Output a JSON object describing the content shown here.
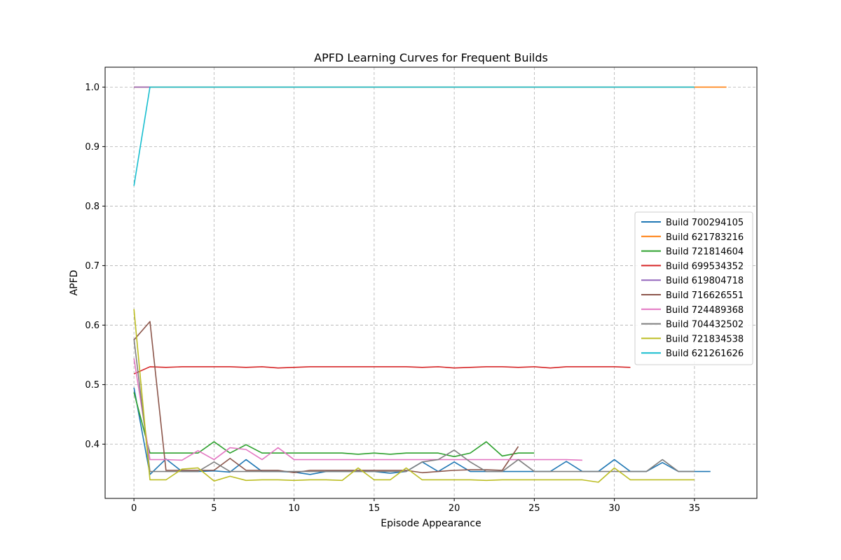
{
  "chart_data": {
    "type": "line",
    "title": "APFD Learning Curves for Frequent Builds",
    "xlabel": "Episode Appearance",
    "ylabel": "APFD",
    "xlim": [
      -1.8,
      38.9
    ],
    "ylim": [
      0.3088,
      1.0334
    ],
    "xticks": [
      0,
      5,
      10,
      15,
      20,
      25,
      30,
      35
    ],
    "yticks": [
      0.4,
      0.5,
      0.6,
      0.7,
      0.8,
      0.9,
      1.0
    ],
    "ytick_labels": [
      "0.4",
      "0.5",
      "0.6",
      "0.7",
      "0.8",
      "0.9",
      "1.0"
    ],
    "grid": true,
    "legend_position": "center-right",
    "series": [
      {
        "name": "Build 700294105",
        "color": "#1f77b4",
        "values": [
          0.495,
          0.349,
          0.375,
          0.354,
          0.354,
          0.355,
          0.353,
          0.374,
          0.354,
          0.354,
          0.353,
          0.349,
          0.354,
          0.354,
          0.354,
          0.354,
          0.351,
          0.354,
          0.37,
          0.354,
          0.37,
          0.354,
          0.354,
          0.354,
          0.354,
          0.354,
          0.354,
          0.371,
          0.354,
          0.354,
          0.374,
          0.354,
          0.354,
          0.369,
          0.354,
          0.354,
          0.354
        ]
      },
      {
        "name": "Build 621783216",
        "color": "#ff7f0e",
        "values": [
          1.0,
          1.0,
          1.0,
          1.0,
          1.0,
          1.0,
          1.0,
          1.0,
          1.0,
          1.0,
          1.0,
          1.0,
          1.0,
          1.0,
          1.0,
          1.0,
          1.0,
          1.0,
          1.0,
          1.0,
          1.0,
          1.0,
          1.0,
          1.0,
          1.0,
          1.0,
          1.0,
          1.0,
          1.0,
          1.0,
          1.0,
          1.0,
          1.0,
          1.0,
          1.0,
          1.0,
          1.0,
          1.0
        ]
      },
      {
        "name": "Build 721814604",
        "color": "#2ca02c",
        "values": [
          0.487,
          0.385,
          0.385,
          0.385,
          0.385,
          0.404,
          0.385,
          0.399,
          0.385,
          0.385,
          0.385,
          0.385,
          0.385,
          0.385,
          0.383,
          0.385,
          0.383,
          0.385,
          0.385,
          0.385,
          0.379,
          0.385,
          0.404,
          0.38,
          0.385,
          0.385
        ]
      },
      {
        "name": "Build 699534352",
        "color": "#d62728",
        "values": [
          0.518,
          0.53,
          0.529,
          0.53,
          0.53,
          0.53,
          0.53,
          0.529,
          0.53,
          0.528,
          0.529,
          0.53,
          0.53,
          0.53,
          0.53,
          0.53,
          0.53,
          0.53,
          0.529,
          0.53,
          0.528,
          0.529,
          0.53,
          0.53,
          0.529,
          0.53,
          0.528,
          0.53,
          0.53,
          0.53,
          0.53,
          0.529
        ]
      },
      {
        "name": "Build 619804718",
        "color": "#9467bd",
        "values": [
          1.0,
          1.0
        ]
      },
      {
        "name": "Build 716626551",
        "color": "#8c564b",
        "values": [
          0.575,
          0.606,
          0.356,
          0.356,
          0.356,
          0.356,
          0.376,
          0.356,
          0.356,
          0.356,
          0.352,
          0.356,
          0.356,
          0.356,
          0.356,
          0.356,
          0.356,
          0.356,
          0.352,
          0.354,
          0.356,
          0.357,
          0.357,
          0.356,
          0.396
        ]
      },
      {
        "name": "Build 724489368",
        "color": "#e377c2",
        "values": [
          0.544,
          0.374,
          0.374,
          0.373,
          0.389,
          0.374,
          0.394,
          0.391,
          0.374,
          0.394,
          0.374,
          0.374,
          0.374,
          0.374,
          0.374,
          0.374,
          0.374,
          0.374,
          0.374,
          0.374,
          0.374,
          0.374,
          0.374,
          0.374,
          0.374,
          0.374,
          0.374,
          0.374,
          0.373
        ]
      },
      {
        "name": "Build 704432502",
        "color": "#7f7f7f",
        "values": [
          0.577,
          0.354,
          0.354,
          0.354,
          0.354,
          0.37,
          0.354,
          0.354,
          0.354,
          0.354,
          0.354,
          0.354,
          0.354,
          0.354,
          0.354,
          0.354,
          0.354,
          0.354,
          0.37,
          0.374,
          0.39,
          0.37,
          0.354,
          0.354,
          0.374,
          0.354,
          0.354,
          0.354,
          0.354,
          0.354,
          0.354,
          0.354,
          0.354,
          0.374,
          0.354,
          0.354
        ]
      },
      {
        "name": "Build 721834538",
        "color": "#bcbd22",
        "values": [
          0.627,
          0.34,
          0.34,
          0.358,
          0.36,
          0.338,
          0.346,
          0.339,
          0.34,
          0.34,
          0.339,
          0.34,
          0.34,
          0.339,
          0.36,
          0.34,
          0.34,
          0.36,
          0.34,
          0.34,
          0.34,
          0.34,
          0.339,
          0.34,
          0.34,
          0.34,
          0.34,
          0.34,
          0.34,
          0.336,
          0.36,
          0.34,
          0.34,
          0.34,
          0.34,
          0.34
        ]
      },
      {
        "name": "Build 621261626",
        "color": "#17becf",
        "values": [
          0.834,
          1.0,
          1.0,
          1.0,
          1.0,
          1.0,
          1.0,
          1.0,
          1.0,
          1.0,
          1.0,
          1.0,
          1.0,
          1.0,
          1.0,
          1.0,
          1.0,
          1.0,
          1.0,
          1.0,
          1.0,
          1.0,
          1.0,
          1.0,
          1.0,
          1.0,
          1.0,
          1.0,
          1.0,
          1.0,
          1.0,
          1.0,
          1.0,
          1.0,
          1.0,
          1.0
        ]
      }
    ]
  }
}
